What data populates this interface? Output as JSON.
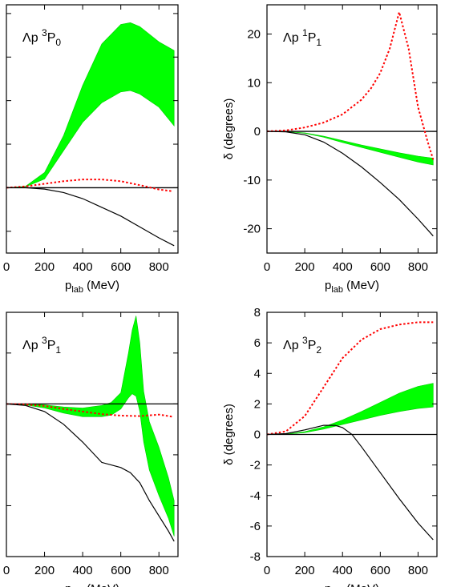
{
  "chart_data": [
    {
      "type": "line",
      "title": "",
      "panel_label": {
        "base": "Λp ",
        "sup": "3",
        "main": "P",
        "sub": "0"
      },
      "xlabel": {
        "base": "p",
        "sub": "lab",
        "rest": " (MeV)"
      },
      "ylabel": "",
      "xlim": [
        0,
        900
      ],
      "ylim": [
        -15,
        42
      ],
      "xticks": [
        0,
        200,
        400,
        600,
        800
      ],
      "xtick_labels": [
        "0",
        "200",
        "400",
        "600",
        "800"
      ],
      "yticks": [
        -10,
        0,
        10,
        20,
        30,
        40
      ],
      "ytick_labels": [],
      "reference_line": 0,
      "band": {
        "x": [
          0,
          100,
          200,
          300,
          400,
          500,
          600,
          650,
          700,
          800,
          880
        ],
        "lower": [
          0,
          0.2,
          2.0,
          8.5,
          15.0,
          19.5,
          22.0,
          22.3,
          21.5,
          18.5,
          14.2
        ],
        "upper": [
          0,
          0.3,
          3.5,
          12.0,
          23.5,
          33.0,
          37.5,
          37.9,
          37.0,
          33.5,
          31.5
        ]
      },
      "series": [
        {
          "style": "dotted",
          "x": [
            0,
            100,
            200,
            300,
            400,
            500,
            600,
            700,
            800,
            870
          ],
          "y": [
            0,
            0.3,
            0.9,
            1.5,
            1.9,
            1.9,
            1.5,
            0.6,
            -0.4,
            -0.8
          ]
        },
        {
          "style": "solid",
          "x": [
            0,
            100,
            200,
            300,
            400,
            500,
            600,
            700,
            800,
            880
          ],
          "y": [
            0,
            0,
            -0.3,
            -1.1,
            -2.5,
            -4.5,
            -6.5,
            -9.0,
            -11.5,
            -13.3
          ]
        }
      ]
    },
    {
      "type": "line",
      "title": "",
      "panel_label": {
        "base": "Λp ",
        "sup": "1",
        "main": "P",
        "sub": "1"
      },
      "xlabel": {
        "base": "p",
        "sub": "lab",
        "rest": " (MeV)"
      },
      "ylabel": "δ (degrees)",
      "xlim": [
        0,
        900
      ],
      "ylim": [
        -25,
        26
      ],
      "xticks": [
        0,
        200,
        400,
        600,
        800
      ],
      "xtick_labels": [
        "0",
        "200",
        "400",
        "600",
        "800"
      ],
      "yticks": [
        -20,
        -10,
        0,
        10,
        20
      ],
      "ytick_labels": [
        "-20",
        "-10",
        "0",
        "10",
        "20"
      ],
      "reference_line": 0,
      "band": {
        "x": [
          0,
          100,
          200,
          300,
          400,
          500,
          600,
          700,
          800,
          880
        ],
        "lower": [
          0,
          -0.05,
          -0.4,
          -1.2,
          -2.3,
          -3.3,
          -4.3,
          -5.3,
          -6.3,
          -6.9
        ],
        "upper": [
          0,
          -0.05,
          -0.3,
          -1.0,
          -1.9,
          -2.8,
          -3.6,
          -4.4,
          -5.1,
          -5.5
        ]
      },
      "series": [
        {
          "style": "dotted",
          "x": [
            0,
            100,
            200,
            300,
            400,
            500,
            550,
            600,
            650,
            700,
            750,
            800,
            850,
            880
          ],
          "y": [
            0,
            0.2,
            0.8,
            1.8,
            3.5,
            6.5,
            8.8,
            12.0,
            17.0,
            24.5,
            17.0,
            5.0,
            -2.0,
            -5.8
          ]
        },
        {
          "style": "solid",
          "x": [
            0,
            100,
            200,
            300,
            400,
            500,
            600,
            700,
            800,
            880
          ],
          "y": [
            0,
            -0.1,
            -0.7,
            -2.2,
            -4.5,
            -7.3,
            -10.5,
            -14.0,
            -18.0,
            -21.5
          ]
        }
      ]
    },
    {
      "type": "line",
      "title": "",
      "panel_label": {
        "base": "Λp ",
        "sup": "3",
        "main": "P",
        "sub": "1"
      },
      "xlabel": {
        "base": "p",
        "sub": "lab",
        "rest": " (MeV)"
      },
      "ylabel": "",
      "xlim": [
        0,
        900
      ],
      "ylim": [
        -30,
        18
      ],
      "xticks": [
        0,
        200,
        400,
        600,
        800
      ],
      "xtick_labels": [
        "0",
        "200",
        "400",
        "600",
        "800"
      ],
      "yticks": [
        -20,
        -10,
        0,
        10
      ],
      "ytick_labels": [],
      "reference_line": 0,
      "band": {
        "x": [
          0,
          100,
          200,
          300,
          400,
          500,
          550,
          600,
          640,
          660,
          680,
          700,
          720,
          750,
          800,
          850,
          880
        ],
        "lower": [
          0,
          -0.2,
          -0.8,
          -1.8,
          -2.5,
          -2.5,
          -2.2,
          -1.0,
          1.2,
          2.0,
          1.5,
          -1.5,
          -7.5,
          -13.0,
          -18.0,
          -22.5,
          -26.0
        ],
        "upper": [
          0,
          0,
          -0.2,
          -0.6,
          -0.8,
          -0.3,
          0.3,
          2.2,
          10.0,
          14.5,
          17.3,
          12.0,
          2.5,
          -3.5,
          -8.5,
          -14.5,
          -19.0
        ]
      },
      "series": [
        {
          "style": "dotted",
          "x": [
            0,
            100,
            200,
            300,
            400,
            500,
            600,
            700,
            800,
            870
          ],
          "y": [
            0,
            -0.1,
            -0.4,
            -1.0,
            -1.5,
            -2.0,
            -2.3,
            -2.4,
            -2.1,
            -2.5
          ]
        },
        {
          "style": "solid",
          "x": [
            0,
            100,
            200,
            300,
            400,
            500,
            600,
            650,
            700,
            750,
            800,
            850,
            880
          ],
          "y": [
            0,
            -0.3,
            -1.5,
            -4.0,
            -7.5,
            -11.5,
            -12.5,
            -13.5,
            -15.5,
            -19.0,
            -22.0,
            -25.0,
            -27.0
          ]
        }
      ]
    },
    {
      "type": "line",
      "title": "",
      "panel_label": {
        "base": "Λp ",
        "sup": "3",
        "main": "P",
        "sub": "2"
      },
      "xlabel": {
        "base": "p",
        "sub": "lab",
        "rest": " (MeV)"
      },
      "ylabel": "δ (degrees)",
      "xlim": [
        0,
        900
      ],
      "ylim": [
        -8,
        8
      ],
      "xticks": [
        0,
        200,
        400,
        600,
        800
      ],
      "xtick_labels": [
        "0",
        "200",
        "400",
        "600",
        "800"
      ],
      "yticks": [
        -8,
        -6,
        -4,
        -2,
        0,
        2,
        4,
        6,
        8
      ],
      "ytick_labels": [
        "-8",
        "-6",
        "-4",
        "-2",
        "0",
        "2",
        "4",
        "6",
        "8"
      ],
      "reference_line": 0,
      "band": {
        "x": [
          0,
          100,
          200,
          300,
          400,
          500,
          600,
          700,
          800,
          880
        ],
        "lower": [
          0,
          0.01,
          0.12,
          0.35,
          0.65,
          0.95,
          1.25,
          1.5,
          1.7,
          1.8
        ],
        "upper": [
          0,
          0.02,
          0.18,
          0.5,
          0.95,
          1.5,
          2.1,
          2.7,
          3.15,
          3.35
        ]
      },
      "series": [
        {
          "style": "dotted",
          "x": [
            0,
            100,
            200,
            300,
            400,
            500,
            600,
            700,
            800,
            880
          ],
          "y": [
            0,
            0.2,
            1.2,
            3.1,
            5.0,
            6.2,
            6.9,
            7.2,
            7.35,
            7.35
          ]
        },
        {
          "style": "solid",
          "x": [
            0,
            100,
            200,
            300,
            360,
            400,
            450,
            500,
            600,
            700,
            800,
            880
          ],
          "y": [
            0,
            0.05,
            0.3,
            0.6,
            0.6,
            0.45,
            0.0,
            -0.8,
            -2.5,
            -4.2,
            -5.8,
            -6.9
          ]
        }
      ]
    }
  ]
}
